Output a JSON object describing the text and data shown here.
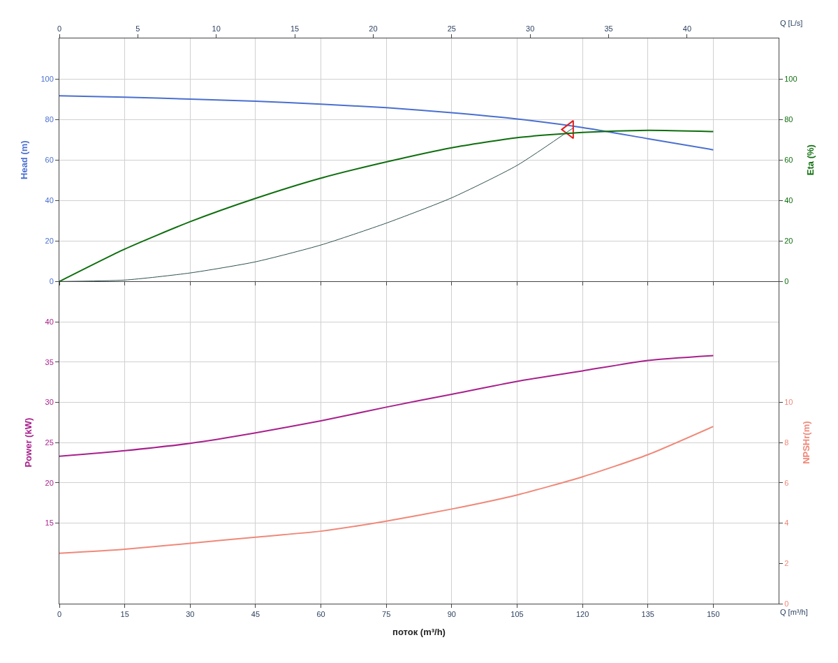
{
  "chart_data": [
    {
      "type": "line",
      "x2label": "Q [L/s]",
      "ylabel": "Head (m)",
      "y2label": "Eta (%)",
      "x": [
        0,
        15,
        30,
        45,
        60,
        75,
        90,
        105,
        120,
        135,
        150
      ],
      "xlim": [
        0,
        165
      ],
      "xticks": [
        0,
        15,
        30,
        45,
        60,
        75,
        90,
        105,
        120,
        135,
        150
      ],
      "x2lim": [
        0,
        45.83
      ],
      "x2ticks": [
        0,
        5,
        10,
        15,
        20,
        25,
        30,
        35,
        40
      ],
      "ylim": [
        0,
        120
      ],
      "yticks": [
        0,
        20,
        40,
        60,
        80,
        100
      ],
      "y2lim": [
        0,
        120
      ],
      "y2ticks": [
        0,
        20,
        40,
        60,
        80,
        100
      ],
      "tick_labels": "y",
      "grid": true,
      "marker": "none",
      "line_style": "solid",
      "series": [
        {
          "color": "#4a6fd0",
          "values": [
            91.7,
            91,
            90,
            89,
            87.5,
            85.8,
            83.3,
            80.2,
            76,
            70.5,
            65
          ]
        },
        {
          "color": "#0e6e0e",
          "axis": "y2",
          "values": [
            0,
            16,
            29.5,
            41,
            51,
            59,
            66,
            71,
            73.6,
            74.6,
            74
          ]
        },
        {
          "color": "#2f4f4f",
          "x": [
            0,
            15,
            30,
            45,
            60,
            75,
            90,
            105,
            118
          ],
          "values": [
            0,
            0.7,
            4.2,
            9.7,
            18,
            28.8,
            41.3,
            57.3,
            76
          ]
        },
        {
          "type": "scatter",
          "marker": "triangle",
          "color": "#e02020",
          "x": [
            117
          ],
          "values": [
            75
          ]
        }
      ]
    },
    {
      "type": "line",
      "xlabel": "поток (m³/h)",
      "ylabel": "Power (kW)",
      "y2label": "NPSHr(m)",
      "annotations": [
        "Q [m³/h]"
      ],
      "x": [
        0,
        15,
        30,
        45,
        60,
        75,
        90,
        105,
        120,
        135,
        150
      ],
      "xlim": [
        0,
        165
      ],
      "xticks": [
        0,
        15,
        30,
        45,
        60,
        75,
        90,
        105,
        120,
        135,
        150
      ],
      "ylim": [
        5,
        45
      ],
      "yticks": [
        15,
        20,
        25,
        30,
        35,
        40
      ],
      "y2lim": [
        0,
        16
      ],
      "y2ticks": [
        0,
        2,
        4,
        6,
        8,
        10
      ],
      "grid": true,
      "marker": "none",
      "line_style": "solid",
      "series": [
        {
          "color": "#a8208c",
          "values": [
            23.3,
            24,
            24.9,
            26.2,
            27.7,
            29.4,
            31,
            32.6,
            33.9,
            35.2,
            35.8
          ]
        },
        {
          "color": "#f08878",
          "axis": "y2",
          "values": [
            2.5,
            2.7,
            3,
            3.3,
            3.6,
            4.1,
            4.7,
            5.4,
            6.3,
            7.4,
            8.8
          ]
        }
      ]
    }
  ]
}
